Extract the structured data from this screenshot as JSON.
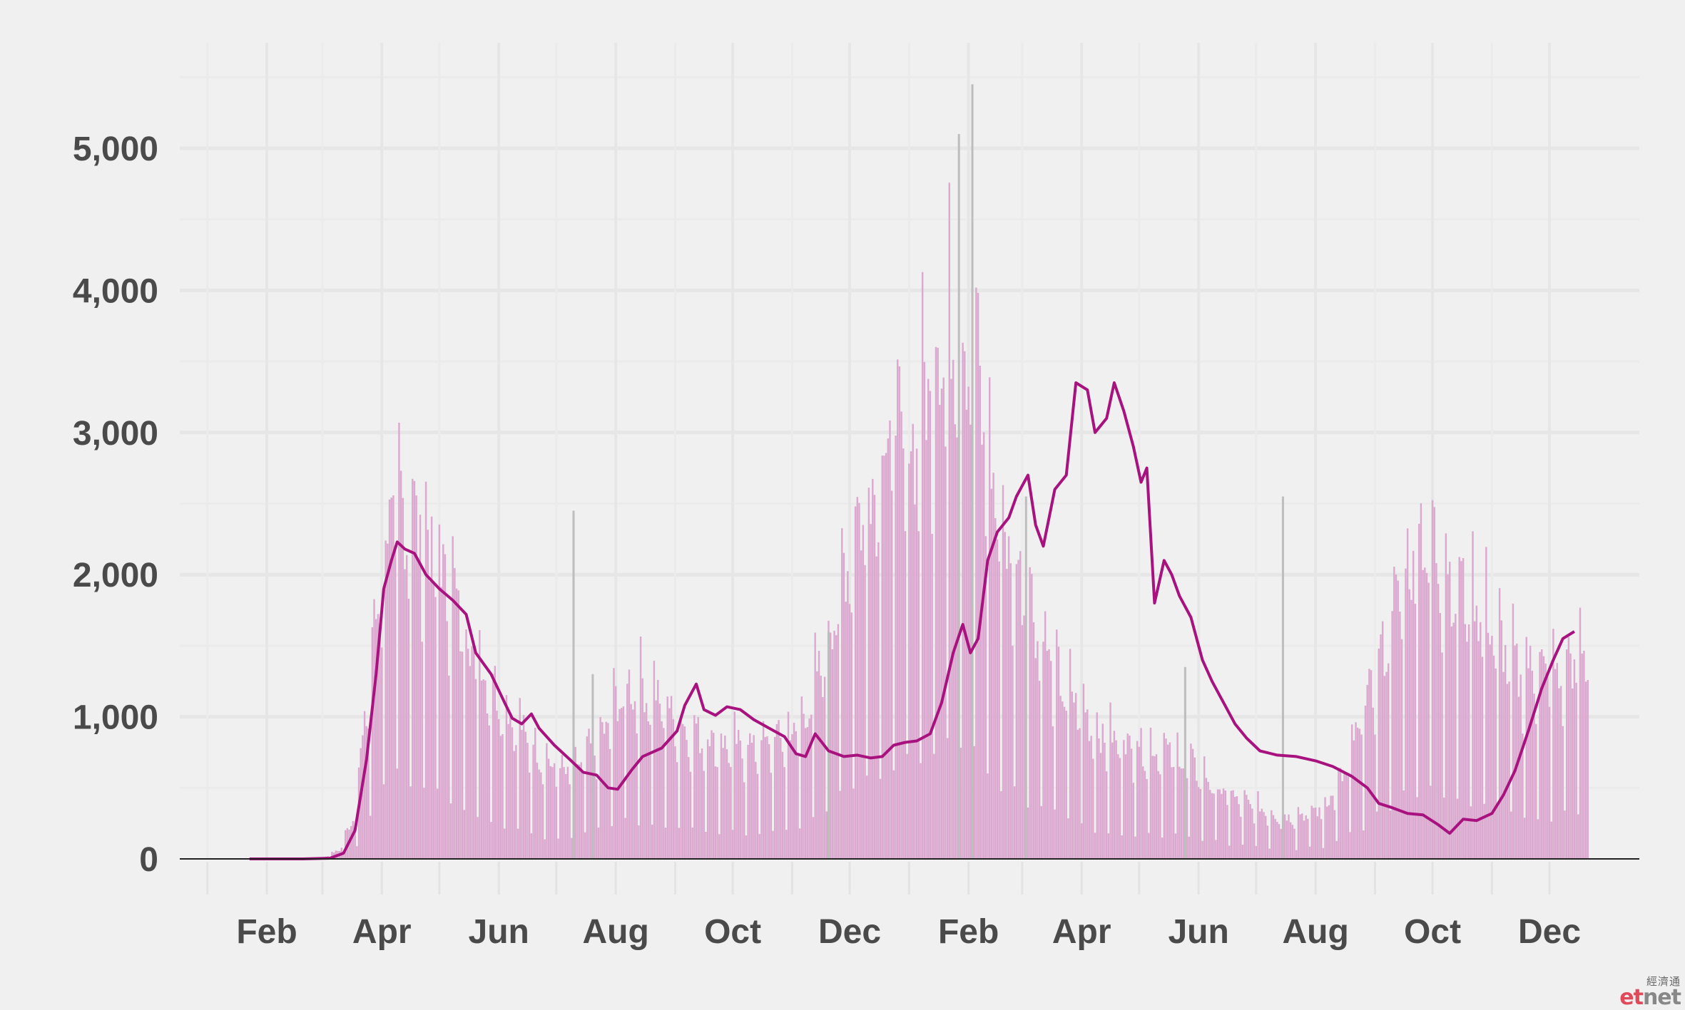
{
  "chart_data": {
    "type": "bar",
    "title": "",
    "xlabel": "",
    "ylabel": "",
    "ylim": [
      0,
      5600
    ],
    "y_ticks": [
      0,
      1000,
      2000,
      3000,
      4000,
      5000
    ],
    "y_tick_labels": [
      "0",
      "1,000",
      "2,000",
      "3,000",
      "4,000",
      "5,000"
    ],
    "x_range": [
      "2020-01-01",
      "2021-12-31"
    ],
    "x_ticks": [
      {
        "date": "2020-02-01",
        "label": "Feb"
      },
      {
        "date": "2020-04-01",
        "label": "Apr"
      },
      {
        "date": "2020-06-01",
        "label": "Jun"
      },
      {
        "date": "2020-08-01",
        "label": "Aug"
      },
      {
        "date": "2020-10-01",
        "label": "Oct"
      },
      {
        "date": "2020-12-01",
        "label": "Dec"
      },
      {
        "date": "2021-02-01",
        "label": "Feb"
      },
      {
        "date": "2021-04-01",
        "label": "Apr"
      },
      {
        "date": "2021-06-01",
        "label": "Jun"
      },
      {
        "date": "2021-08-01",
        "label": "Aug"
      },
      {
        "date": "2021-10-01",
        "label": "Oct"
      },
      {
        "date": "2021-12-01",
        "label": "Dec"
      }
    ],
    "grid": true,
    "series": [
      {
        "kind": "daily-bars",
        "color": "#dba8cf",
        "unit_step_days": 1,
        "start": "2020-01-23",
        "end": "2021-12-21",
        "daily_key_values": [
          [
            "2020-01-23",
            0
          ],
          [
            "2020-03-01",
            5
          ],
          [
            "2020-03-10",
            60
          ],
          [
            "2020-03-18",
            300
          ],
          [
            "2020-03-25",
            1100
          ],
          [
            "2020-04-01",
            1900
          ],
          [
            "2020-04-08",
            2300
          ],
          [
            "2020-04-15",
            2250
          ],
          [
            "2020-04-25",
            2050
          ],
          [
            "2020-05-05",
            1800
          ],
          [
            "2020-05-15",
            1500
          ],
          [
            "2020-05-25",
            1200
          ],
          [
            "2020-06-05",
            950
          ],
          [
            "2020-06-15",
            800
          ],
          [
            "2020-06-25",
            640
          ],
          [
            "2020-07-05",
            560
          ],
          [
            "2020-07-15",
            650
          ],
          [
            "2020-07-25",
            800
          ],
          [
            "2020-08-05",
            1100
          ],
          [
            "2020-08-15",
            1100
          ],
          [
            "2020-08-25",
            1000
          ],
          [
            "2020-09-05",
            850
          ],
          [
            "2020-09-15",
            800
          ],
          [
            "2020-09-25",
            740
          ],
          [
            "2020-10-10",
            720
          ],
          [
            "2020-10-25",
            780
          ],
          [
            "2020-11-05",
            850
          ],
          [
            "2020-11-15",
            1200
          ],
          [
            "2020-11-25",
            1700
          ],
          [
            "2020-12-05",
            2200
          ],
          [
            "2020-12-15",
            2500
          ],
          [
            "2020-12-25",
            2800
          ],
          [
            "2021-01-01",
            2600
          ],
          [
            "2021-01-10",
            3000
          ],
          [
            "2021-01-18",
            3400
          ],
          [
            "2021-01-28",
            3300
          ],
          [
            "2021-02-05",
            3200
          ],
          [
            "2021-02-12",
            2500
          ],
          [
            "2021-02-20",
            2050
          ],
          [
            "2021-03-01",
            1800
          ],
          [
            "2021-03-10",
            1500
          ],
          [
            "2021-03-20",
            1150
          ],
          [
            "2021-04-01",
            980
          ],
          [
            "2021-04-10",
            800
          ],
          [
            "2021-04-20",
            760
          ],
          [
            "2021-05-05",
            720
          ],
          [
            "2021-05-20",
            680
          ],
          [
            "2021-06-05",
            520
          ],
          [
            "2021-06-15",
            420
          ],
          [
            "2021-06-25",
            360
          ],
          [
            "2021-07-05",
            320
          ],
          [
            "2021-07-15",
            260
          ],
          [
            "2021-07-25",
            290
          ],
          [
            "2021-08-05",
            330
          ],
          [
            "2021-08-15",
            520
          ],
          [
            "2021-08-25",
            900
          ],
          [
            "2021-09-05",
            1350
          ],
          [
            "2021-09-15",
            1800
          ],
          [
            "2021-09-25",
            2100
          ],
          [
            "2021-10-05",
            1950
          ],
          [
            "2021-10-15",
            1750
          ],
          [
            "2021-10-25",
            1650
          ],
          [
            "2021-11-05",
            1400
          ],
          [
            "2021-11-15",
            1200
          ],
          [
            "2021-11-25",
            1250
          ],
          [
            "2021-12-05",
            1150
          ],
          [
            "2021-12-12",
            1300
          ],
          [
            "2021-12-21",
            1280
          ]
        ]
      },
      {
        "kind": "rolling-average-line",
        "color": "#a8127f",
        "points": [
          [
            "2020-01-23",
            0
          ],
          [
            "2020-02-20",
            0
          ],
          [
            "2020-03-05",
            5
          ],
          [
            "2020-03-12",
            40
          ],
          [
            "2020-03-18",
            200
          ],
          [
            "2020-03-24",
            700
          ],
          [
            "2020-03-29",
            1300
          ],
          [
            "2020-04-02",
            1900
          ],
          [
            "2020-04-06",
            2100
          ],
          [
            "2020-04-09",
            2230
          ],
          [
            "2020-04-13",
            2180
          ],
          [
            "2020-04-18",
            2150
          ],
          [
            "2020-04-24",
            2000
          ],
          [
            "2020-05-01",
            1900
          ],
          [
            "2020-05-08",
            1820
          ],
          [
            "2020-05-15",
            1720
          ],
          [
            "2020-05-20",
            1450
          ],
          [
            "2020-05-28",
            1300
          ],
          [
            "2020-06-04",
            1100
          ],
          [
            "2020-06-08",
            990
          ],
          [
            "2020-06-13",
            950
          ],
          [
            "2020-06-18",
            1020
          ],
          [
            "2020-06-22",
            920
          ],
          [
            "2020-06-30",
            800
          ],
          [
            "2020-07-08",
            700
          ],
          [
            "2020-07-15",
            610
          ],
          [
            "2020-07-22",
            590
          ],
          [
            "2020-07-28",
            500
          ],
          [
            "2020-08-02",
            490
          ],
          [
            "2020-08-09",
            620
          ],
          [
            "2020-08-15",
            720
          ],
          [
            "2020-08-25",
            780
          ],
          [
            "2020-09-02",
            900
          ],
          [
            "2020-09-06",
            1080
          ],
          [
            "2020-09-12",
            1230
          ],
          [
            "2020-09-16",
            1050
          ],
          [
            "2020-09-22",
            1010
          ],
          [
            "2020-09-28",
            1070
          ],
          [
            "2020-10-05",
            1050
          ],
          [
            "2020-10-12",
            980
          ],
          [
            "2020-10-20",
            920
          ],
          [
            "2020-10-28",
            860
          ],
          [
            "2020-11-03",
            740
          ],
          [
            "2020-11-08",
            720
          ],
          [
            "2020-11-13",
            880
          ],
          [
            "2020-11-20",
            760
          ],
          [
            "2020-11-28",
            720
          ],
          [
            "2020-12-05",
            730
          ],
          [
            "2020-12-12",
            710
          ],
          [
            "2020-12-18",
            720
          ],
          [
            "2020-12-24",
            800
          ],
          [
            "2020-12-30",
            820
          ],
          [
            "2021-01-05",
            830
          ],
          [
            "2021-01-12",
            880
          ],
          [
            "2021-01-18",
            1100
          ],
          [
            "2021-01-24",
            1450
          ],
          [
            "2021-01-29",
            1650
          ],
          [
            "2021-02-02",
            1450
          ],
          [
            "2021-02-06",
            1550
          ],
          [
            "2021-02-11",
            2100
          ],
          [
            "2021-02-16",
            2300
          ],
          [
            "2021-02-22",
            2400
          ],
          [
            "2021-02-26",
            2550
          ],
          [
            "2021-03-04",
            2700
          ],
          [
            "2021-03-08",
            2350
          ],
          [
            "2021-03-12",
            2200
          ],
          [
            "2021-03-18",
            2600
          ],
          [
            "2021-03-24",
            2700
          ],
          [
            "2021-03-29",
            3350
          ],
          [
            "2021-04-04",
            3300
          ],
          [
            "2021-04-08",
            3000
          ],
          [
            "2021-04-14",
            3100
          ],
          [
            "2021-04-18",
            3350
          ],
          [
            "2021-04-23",
            3150
          ],
          [
            "2021-04-28",
            2900
          ],
          [
            "2021-05-02",
            2650
          ],
          [
            "2021-05-05",
            2750
          ],
          [
            "2021-05-09",
            1800
          ],
          [
            "2021-05-14",
            2100
          ],
          [
            "2021-05-18",
            2000
          ],
          [
            "2021-05-22",
            1850
          ],
          [
            "2021-05-28",
            1700
          ],
          [
            "2021-06-03",
            1400
          ],
          [
            "2021-06-08",
            1250
          ],
          [
            "2021-06-14",
            1100
          ],
          [
            "2021-06-20",
            950
          ],
          [
            "2021-06-26",
            850
          ],
          [
            "2021-07-03",
            760
          ],
          [
            "2021-07-12",
            730
          ],
          [
            "2021-07-22",
            720
          ],
          [
            "2021-08-01",
            690
          ],
          [
            "2021-08-10",
            650
          ],
          [
            "2021-08-20",
            580
          ],
          [
            "2021-08-28",
            500
          ],
          [
            "2021-09-03",
            390
          ],
          [
            "2021-09-10",
            360
          ],
          [
            "2021-09-18",
            320
          ],
          [
            "2021-09-26",
            310
          ],
          [
            "2021-10-04",
            240
          ],
          [
            "2021-10-10",
            180
          ],
          [
            "2021-10-17",
            280
          ],
          [
            "2021-10-24",
            270
          ],
          [
            "2021-11-01",
            320
          ],
          [
            "2021-11-07",
            450
          ],
          [
            "2021-11-13",
            620
          ],
          [
            "2021-11-20",
            900
          ],
          [
            "2021-11-27",
            1200
          ],
          [
            "2021-12-03",
            1400
          ],
          [
            "2021-12-08",
            1550
          ],
          [
            "2021-12-14",
            1600
          ]
        ]
      }
    ],
    "outlier_bars": {
      "color": "#bdbdbd",
      "values": [
        [
          "2020-07-10",
          2450
        ],
        [
          "2020-07-20",
          1300
        ],
        [
          "2020-11-20",
          1600
        ],
        [
          "2021-01-27",
          5100
        ],
        [
          "2021-02-03",
          5450
        ],
        [
          "2021-03-03",
          2550
        ],
        [
          "2021-05-25",
          1350
        ],
        [
          "2021-07-15",
          2550
        ]
      ]
    }
  },
  "watermark": {
    "cn": "經濟通",
    "logo_et": "et",
    "logo_net": "net"
  }
}
